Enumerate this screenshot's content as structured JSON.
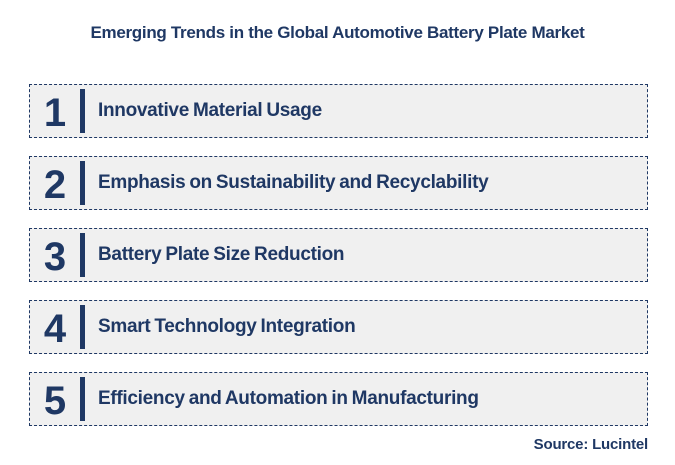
{
  "title": "Emerging Trends in the Global Automotive Battery Plate Market",
  "trends": [
    {
      "number": "1",
      "label": "Innovative Material Usage"
    },
    {
      "number": "2",
      "label": "Emphasis on Sustainability and Recyclability"
    },
    {
      "number": "3",
      "label": "Battery Plate Size Reduction"
    },
    {
      "number": "4",
      "label": "Smart Technology Integration"
    },
    {
      "number": "5",
      "label": "Efficiency and Automation in Manufacturing"
    }
  ],
  "source": "Source: Lucintel",
  "colors": {
    "navy": "#1F3864",
    "box_bg": "#F0F0F0",
    "page_bg": "#FFFFFF"
  }
}
